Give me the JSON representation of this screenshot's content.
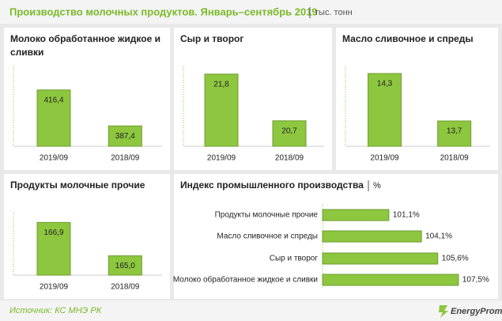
{
  "header": {
    "title": "Производство молочных продуктов. Январь–сентябрь 2019",
    "unit": "тыс. тонн"
  },
  "chart_data": [
    {
      "type": "bar",
      "title": "Молоко обработанное жидкое и сливки",
      "categories": [
        "2019/09",
        "2018/09"
      ],
      "values": [
        416.4,
        387.4
      ],
      "value_labels": [
        "416,4",
        "387,4"
      ],
      "ylim": [
        371,
        436
      ],
      "color": "#8dc63f"
    },
    {
      "type": "bar",
      "title": "Сыр и творог",
      "categories": [
        "2019/09",
        "2018/09"
      ],
      "values": [
        21.8,
        20.7
      ],
      "value_labels": [
        "21,8",
        "20,7"
      ],
      "ylim": [
        20.1,
        22
      ],
      "color": "#8dc63f"
    },
    {
      "type": "bar",
      "title": "Масло сливочное и спреды",
      "categories": [
        "2019/09",
        "2018/09"
      ],
      "values": [
        14.3,
        13.7
      ],
      "value_labels": [
        "14,3",
        "13,7"
      ],
      "ylim": [
        13.38,
        14.4
      ],
      "color": "#8dc63f"
    },
    {
      "type": "bar",
      "title": "Продукты молочные прочие",
      "categories": [
        "2019/09",
        "2018/09"
      ],
      "values": [
        166.9,
        165.0
      ],
      "value_labels": [
        "166,9",
        "165,0"
      ],
      "ylim": [
        163.9,
        167.5
      ],
      "color": "#8dc63f"
    },
    {
      "type": "barh",
      "title": "Индекс промышленного производства",
      "unit": "%",
      "categories": [
        "Продукты молочные прочие",
        "Масло сливочное и спреды",
        "Сыр и творог",
        "Молоко обработанное жидкое и сливки"
      ],
      "values": [
        101.1,
        104.1,
        105.6,
        107.5
      ],
      "value_labels": [
        "101,1%",
        "104,1%",
        "105,6%",
        "107,5%"
      ],
      "xlim": [
        95,
        111
      ],
      "color": "#8dc63f"
    }
  ],
  "footer": {
    "source": "Источник: КС МНЭ РК",
    "brand": "EnergyProm"
  }
}
